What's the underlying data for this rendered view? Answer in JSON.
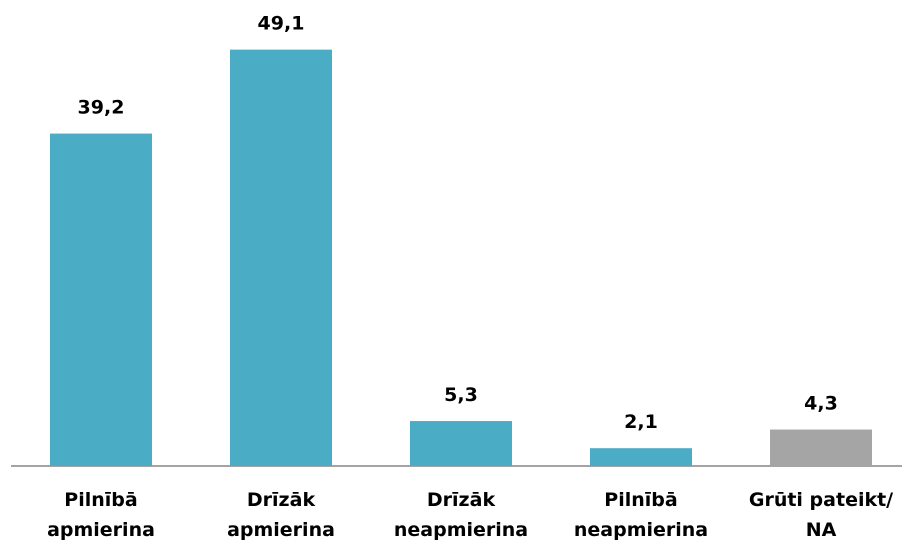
{
  "chart_data": {
    "type": "bar",
    "categories": [
      "Pilnībā apmierina",
      "Drīzāk apmierina",
      "Drīzāk neapmierina",
      "Pilnībā neapmierina",
      "Grūti pateikt/ NA"
    ],
    "values": [
      39.2,
      49.1,
      5.3,
      2.1,
      4.3
    ],
    "value_labels": [
      "39,2",
      "49,1",
      "5,3",
      "2,1",
      "4,3"
    ],
    "colors": [
      "#4bacc6",
      "#4bacc6",
      "#4bacc6",
      "#4bacc6",
      "#a5a5a5"
    ],
    "ylim": [
      0,
      50
    ]
  }
}
